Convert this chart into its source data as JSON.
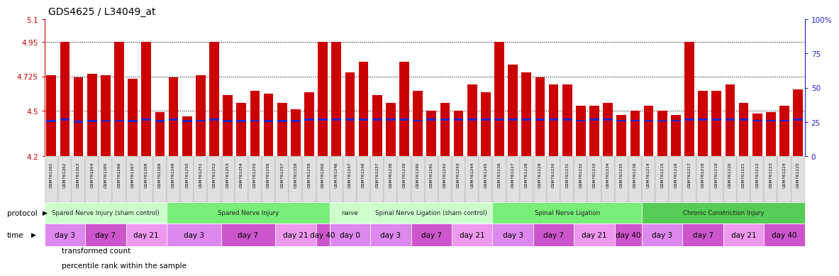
{
  "title": "GDS4625 / L34049_at",
  "samples": [
    "GSM761261",
    "GSM761262",
    "GSM761263",
    "GSM761264",
    "GSM761265",
    "GSM761266",
    "GSM761267",
    "GSM761268",
    "GSM761269",
    "GSM761249",
    "GSM761250",
    "GSM761251",
    "GSM761252",
    "GSM761253",
    "GSM761254",
    "GSM761255",
    "GSM761256",
    "GSM761257",
    "GSM761258",
    "GSM761259",
    "GSM761260",
    "GSM761246",
    "GSM761247",
    "GSM761248",
    "GSM761237",
    "GSM761238",
    "GSM761239",
    "GSM761240",
    "GSM761241",
    "GSM761242",
    "GSM761243",
    "GSM761244",
    "GSM761245",
    "GSM761226",
    "GSM761227",
    "GSM761228",
    "GSM761229",
    "GSM761230",
    "GSM761231",
    "GSM761232",
    "GSM761233",
    "GSM761234",
    "GSM761235",
    "GSM761236",
    "GSM761214",
    "GSM761215",
    "GSM761216",
    "GSM761217",
    "GSM761218",
    "GSM761219",
    "GSM761220",
    "GSM761221",
    "GSM761222",
    "GSM761223",
    "GSM761224",
    "GSM761225"
  ],
  "bar_heights": [
    4.73,
    4.95,
    4.72,
    4.74,
    4.73,
    4.95,
    4.71,
    4.95,
    4.49,
    4.72,
    4.46,
    4.73,
    4.95,
    4.6,
    4.55,
    4.63,
    4.61,
    4.55,
    4.51,
    4.62,
    4.95,
    4.95,
    4.75,
    4.82,
    4.6,
    4.55,
    4.82,
    4.63,
    4.5,
    4.55,
    4.5,
    4.67,
    4.62,
    4.95,
    4.8,
    4.75,
    4.72,
    4.67,
    4.67,
    4.53,
    4.53,
    4.55,
    4.47,
    4.5,
    4.53,
    4.5,
    4.47,
    4.95,
    4.63,
    4.63,
    4.67,
    4.55,
    4.48,
    4.49,
    4.53,
    4.64
  ],
  "percentile_pos": [
    4.425,
    4.435,
    4.42,
    4.425,
    4.428,
    4.427,
    4.426,
    4.435,
    4.425,
    4.435,
    4.425,
    4.428,
    4.435,
    4.426,
    4.425,
    4.427,
    4.426,
    4.425,
    4.425,
    4.435,
    4.435,
    4.435,
    4.435,
    4.435,
    4.435,
    4.435,
    4.435,
    4.428,
    4.435,
    4.435,
    4.435,
    4.435,
    4.435,
    4.435,
    4.435,
    4.435,
    4.435,
    4.435,
    4.435,
    4.428,
    4.435,
    4.435,
    4.428,
    4.428,
    4.428,
    4.428,
    4.428,
    4.435,
    4.435,
    4.435,
    4.435,
    4.435,
    4.428,
    4.428,
    4.428,
    4.435
  ],
  "ymin": 4.2,
  "ymax": 5.1,
  "yticks": [
    4.2,
    4.5,
    4.725,
    4.95,
    5.1
  ],
  "ytick_labels": [
    "4.2",
    "4.5",
    "4.725",
    "4.95",
    "5.1"
  ],
  "hlines": [
    4.5,
    4.725,
    4.95
  ],
  "right_ytick_percents": [
    0,
    25,
    50,
    75,
    100
  ],
  "bar_color": "#cc0000",
  "percentile_color": "#2222cc",
  "protocol_groups": [
    {
      "label": "Spared Nerve Injury (sham control)",
      "start": 0,
      "end": 9,
      "color": "#ccffcc"
    },
    {
      "label": "Spared Nerve Injury",
      "start": 9,
      "end": 21,
      "color": "#77ee77"
    },
    {
      "label": "naive",
      "start": 21,
      "end": 24,
      "color": "#ccffcc"
    },
    {
      "label": "Spinal Nerve Ligation (sham control)",
      "start": 24,
      "end": 33,
      "color": "#ccffcc"
    },
    {
      "label": "Spinal Nerve Ligation",
      "start": 33,
      "end": 44,
      "color": "#77ee77"
    },
    {
      "label": "Chronic Constriction Injury",
      "start": 44,
      "end": 56,
      "color": "#55cc55"
    }
  ],
  "time_groups": [
    {
      "label": "day 3",
      "start": 0,
      "end": 3,
      "color": "#dd88ee"
    },
    {
      "label": "day 7",
      "start": 3,
      "end": 6,
      "color": "#cc55cc"
    },
    {
      "label": "day 21",
      "start": 6,
      "end": 9,
      "color": "#ee99ee"
    },
    {
      "label": "day 3",
      "start": 9,
      "end": 13,
      "color": "#dd88ee"
    },
    {
      "label": "day 7",
      "start": 13,
      "end": 17,
      "color": "#cc55cc"
    },
    {
      "label": "day 21",
      "start": 17,
      "end": 20,
      "color": "#ee99ee"
    },
    {
      "label": "day 40",
      "start": 20,
      "end": 21,
      "color": "#cc55cc"
    },
    {
      "label": "day 0",
      "start": 21,
      "end": 24,
      "color": "#dd88ee"
    },
    {
      "label": "day 3",
      "start": 24,
      "end": 27,
      "color": "#dd88ee"
    },
    {
      "label": "day 7",
      "start": 27,
      "end": 30,
      "color": "#cc55cc"
    },
    {
      "label": "day 21",
      "start": 30,
      "end": 33,
      "color": "#ee99ee"
    },
    {
      "label": "day 3",
      "start": 33,
      "end": 36,
      "color": "#dd88ee"
    },
    {
      "label": "day 7",
      "start": 36,
      "end": 39,
      "color": "#cc55cc"
    },
    {
      "label": "day 21",
      "start": 39,
      "end": 42,
      "color": "#ee99ee"
    },
    {
      "label": "day 40",
      "start": 42,
      "end": 44,
      "color": "#cc55cc"
    },
    {
      "label": "day 3",
      "start": 44,
      "end": 47,
      "color": "#dd88ee"
    },
    {
      "label": "day 7",
      "start": 47,
      "end": 50,
      "color": "#cc55cc"
    },
    {
      "label": "day 21",
      "start": 50,
      "end": 53,
      "color": "#ee99ee"
    },
    {
      "label": "day 40",
      "start": 53,
      "end": 56,
      "color": "#cc55cc"
    }
  ],
  "legend_items": [
    {
      "label": "transformed count",
      "color": "#cc0000"
    },
    {
      "label": "percentile rank within the sample",
      "color": "#2222cc"
    }
  ],
  "tick_color_left": "#cc0000",
  "tick_color_right": "#2222cc"
}
